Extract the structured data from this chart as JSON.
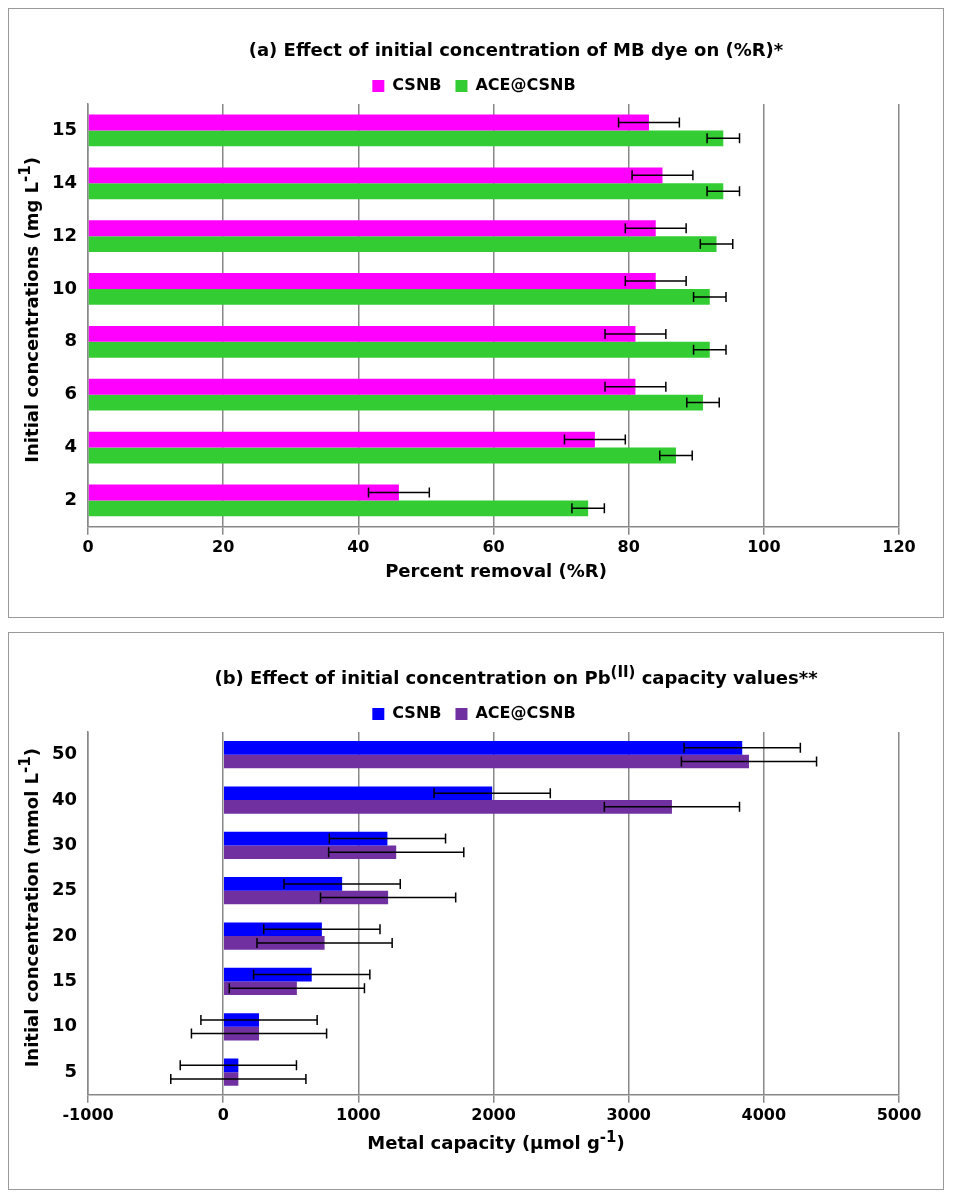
{
  "chart_data": [
    {
      "type": "bar",
      "orientation": "horizontal",
      "title": "(a)  Effect of initial concentration of MB dye on (%R)*",
      "xlabel": "Percent removal (%R)",
      "ylabel": "Initial concentrations (mg L$^{-1}$)",
      "categories": [
        "15",
        "14",
        "12",
        "10",
        "8",
        "6",
        "4",
        "2"
      ],
      "series": [
        {
          "name": "CSNB",
          "color": "#ff00ff",
          "values": [
            83,
            85,
            84,
            84,
            81,
            81,
            75,
            46
          ],
          "errors": [
            4.5,
            4.5,
            4.5,
            4.5,
            4.5,
            4.5,
            4.5,
            4.5
          ]
        },
        {
          "name": "ACE@CSNB",
          "color": "#33cc33",
          "values": [
            94,
            94,
            93,
            92,
            92,
            91,
            87,
            74
          ],
          "errors": [
            2.4,
            2.4,
            2.4,
            2.4,
            2.4,
            2.4,
            2.4,
            2.4
          ]
        }
      ],
      "xlim": [
        0,
        120
      ],
      "xticks": [
        0,
        20,
        40,
        60,
        80,
        100,
        120
      ],
      "grid": "x",
      "legend": "top"
    },
    {
      "type": "bar",
      "orientation": "horizontal",
      "title": "(b)  Effect of initial concentration on Pb$^{(II)}$ capacity values**",
      "xlabel": "Metal capacity (µmol g$^{-1}$)",
      "ylabel": "Initial concentration (mmol L$^{-1}$)",
      "categories": [
        "50",
        "40",
        "30",
        "25",
        "20",
        "15",
        "10",
        "5"
      ],
      "series": [
        {
          "name": "CSNB",
          "color": "#0000ff",
          "values": [
            3840,
            1990,
            1215,
            880,
            730,
            655,
            265,
            112
          ],
          "errors": [
            430,
            430,
            430,
            430,
            430,
            430,
            430,
            430
          ]
        },
        {
          "name": "ACE@CSNB",
          "color": "#7030a0",
          "values": [
            3890,
            3320,
            1280,
            1220,
            750,
            545,
            265,
            112
          ],
          "errors": [
            500,
            500,
            500,
            500,
            500,
            500,
            500,
            500
          ]
        }
      ],
      "xlim": [
        -1000,
        5000
      ],
      "xticks": [
        -1000,
        0,
        1000,
        2000,
        3000,
        4000,
        5000
      ],
      "grid": "x",
      "legend": "top"
    }
  ]
}
